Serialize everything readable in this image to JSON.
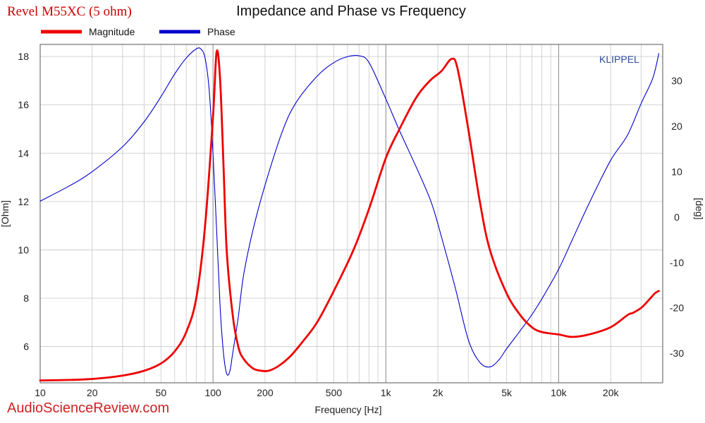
{
  "header": {
    "product": "Revel M55XC (5 ohm)",
    "title": "Impedance and Phase vs Frequency"
  },
  "legend": [
    {
      "label": "Magnitude",
      "color": "#ee0000"
    },
    {
      "label": "Phase",
      "color": "#0000cc"
    }
  ],
  "brand": "KLIPPEL",
  "watermark": "AudioScienceReview.com",
  "colors": {
    "magnitude": "#ee0000",
    "phase": "#0000cc",
    "brand": "#2a4a9a",
    "watermark": "#cc2222",
    "grid": "#c8c8c8"
  },
  "chart_data": {
    "type": "line",
    "title": "Impedance and Phase vs Frequency",
    "xlabel": "Frequency [Hz]",
    "ylabel": "[Ohm]",
    "y2label": "[deg]",
    "xscale": "log",
    "xlim": [
      10,
      40000
    ],
    "ylim": [
      4.5,
      18.5
    ],
    "y2lim": [
      -36.5,
      38.0
    ],
    "xticks": [
      10,
      20,
      50,
      100,
      200,
      500,
      1000,
      2000,
      5000,
      10000,
      20000
    ],
    "xtick_labels": [
      "10",
      "20",
      "50",
      "100",
      "200",
      "500",
      "1k",
      "2k",
      "5k",
      "10k",
      "20k"
    ],
    "yticks": [
      6,
      8,
      10,
      12,
      14,
      16,
      18
    ],
    "y2ticks": [
      30,
      20,
      10,
      0,
      -10,
      -20,
      -30
    ],
    "grid": true,
    "legend_position": "top-left",
    "series": [
      {
        "name": "Magnitude",
        "axis": "left",
        "x": [
          10,
          15,
          20,
          30,
          40,
          50,
          60,
          70,
          80,
          90,
          100,
          105,
          110,
          115,
          120,
          130,
          140,
          150,
          170,
          190,
          210,
          240,
          280,
          330,
          400,
          500,
          650,
          800,
          1000,
          1200,
          1500,
          1800,
          2100,
          2400,
          2600,
          3000,
          3500,
          4000,
          5000,
          6000,
          7000,
          8000,
          10000,
          12000,
          15000,
          20000,
          25000,
          27000,
          30000,
          33000,
          36000,
          38000
        ],
        "y": [
          4.6,
          4.62,
          4.66,
          4.8,
          5.0,
          5.3,
          5.8,
          6.6,
          8.0,
          11.0,
          15.5,
          18.2,
          17.0,
          13.5,
          10.0,
          7.3,
          6.0,
          5.5,
          5.1,
          5.0,
          5.0,
          5.2,
          5.6,
          6.2,
          7.0,
          8.3,
          10.0,
          11.7,
          13.8,
          15.0,
          16.3,
          17.0,
          17.4,
          17.9,
          17.5,
          15.0,
          12.0,
          10.0,
          8.2,
          7.3,
          6.8,
          6.6,
          6.5,
          6.4,
          6.5,
          6.8,
          7.3,
          7.4,
          7.6,
          7.9,
          8.2,
          8.3
        ]
      },
      {
        "name": "Phase",
        "axis": "right",
        "x": [
          10,
          15,
          20,
          30,
          40,
          50,
          60,
          70,
          80,
          85,
          90,
          95,
          100,
          105,
          110,
          115,
          120,
          125,
          130,
          140,
          150,
          170,
          200,
          250,
          300,
          400,
          500,
          600,
          700,
          800,
          1000,
          1200,
          1500,
          1800,
          2000,
          2500,
          3000,
          3500,
          4000,
          4500,
          5000,
          6000,
          7000,
          8000,
          10000,
          12000,
          15000,
          20000,
          25000,
          30000,
          35000,
          38000
        ],
        "y": [
          3.5,
          7.0,
          10.0,
          15.5,
          21.0,
          26.5,
          31.5,
          35.0,
          37.0,
          37.0,
          35.0,
          28.0,
          14.0,
          -3.0,
          -20.0,
          -30.0,
          -34.5,
          -34.0,
          -30.0,
          -22.0,
          -13.0,
          -3.0,
          7.0,
          18.5,
          25.0,
          31.0,
          34.0,
          35.3,
          35.5,
          34.0,
          26.0,
          19.0,
          11.0,
          4.0,
          -1.5,
          -15.0,
          -27.0,
          -32.0,
          -33.0,
          -31.5,
          -29.0,
          -25.0,
          -21.5,
          -18.0,
          -11.5,
          -5.0,
          3.0,
          12.5,
          18.0,
          25.0,
          30.5,
          36.0
        ]
      }
    ]
  }
}
